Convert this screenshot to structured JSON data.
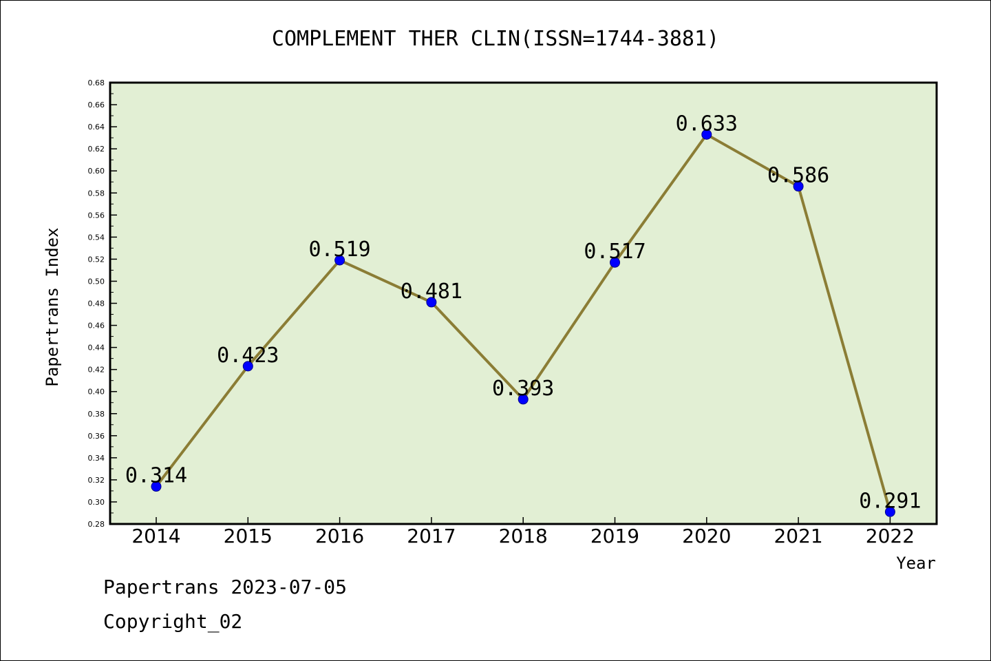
{
  "chart_data": {
    "type": "line",
    "title": "COMPLEMENT THER CLIN(ISSN=1744-3881)",
    "xlabel": "Year",
    "ylabel": "Papertrans Index",
    "categories": [
      "2014",
      "2015",
      "2016",
      "2017",
      "2018",
      "2019",
      "2020",
      "2021",
      "2022"
    ],
    "series": [
      {
        "values": [
          0.314,
          0.423,
          0.519,
          0.481,
          0.393,
          0.517,
          0.633,
          0.586,
          0.291
        ]
      }
    ],
    "data_labels": [
      "0.314",
      "0.423",
      "0.519",
      "0.481",
      "0.393",
      "0.517",
      "0.633",
      "0.586",
      "0.291"
    ],
    "ylim": [
      0.28,
      0.68
    ],
    "ytick_step": 0.02,
    "grid": false,
    "colors": {
      "plot_background": "#e2efd4",
      "line": "#8b7d35",
      "marker": "#0000ff"
    }
  },
  "footer": {
    "line1": "Papertrans 2023-07-05",
    "line2": "Copyright_02"
  }
}
